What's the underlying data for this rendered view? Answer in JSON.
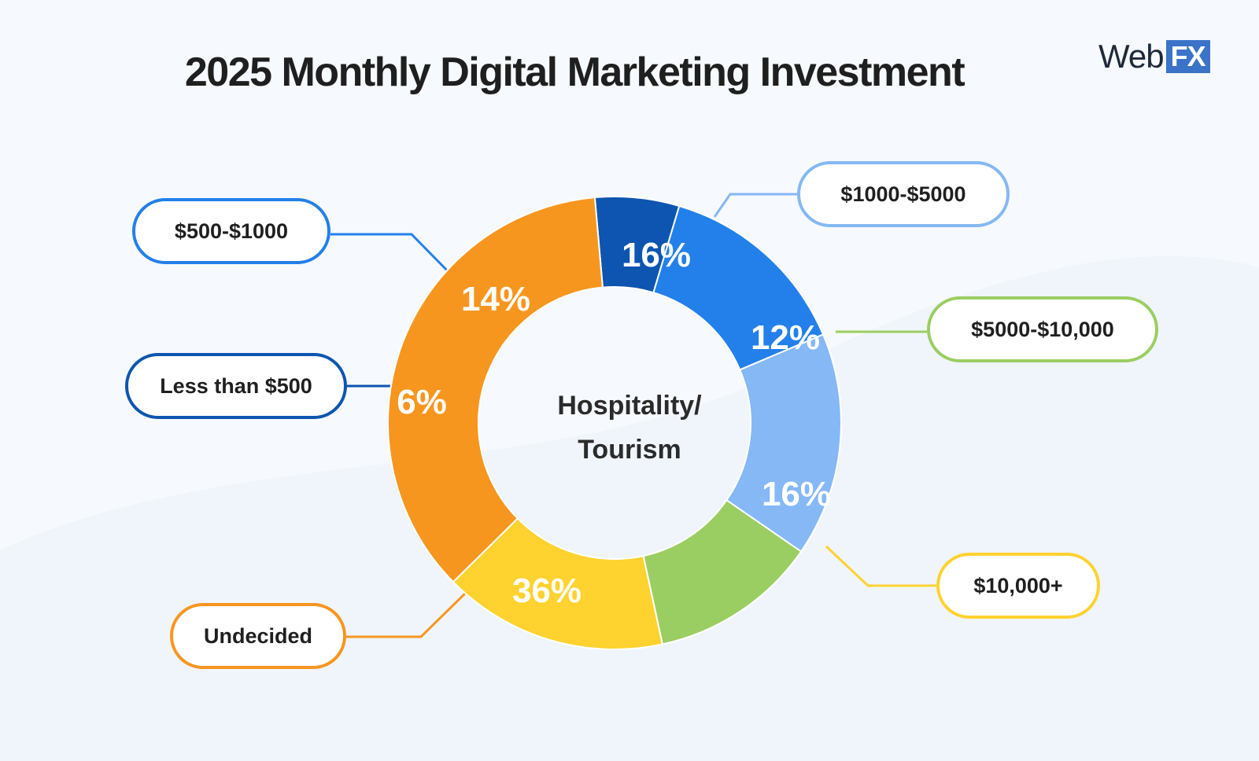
{
  "header": {
    "title": "2025 Monthly Digital Marketing Investment",
    "logo_web": "Web",
    "logo_fx": "FX"
  },
  "center": {
    "line1": "Hospitality/",
    "line2": "Tourism"
  },
  "colors": {
    "background": "#f6f9fd",
    "dark_blue": "#0d55b0",
    "blue": "#2380ea",
    "light_blue": "#85b8f5",
    "green": "#9bce62",
    "yellow": "#fed22f",
    "orange": "#f7961f"
  },
  "chart_data": {
    "type": "pie",
    "title": "2025 Monthly Digital Marketing Investment",
    "center_text": "Hospitality/ Tourism",
    "slices": [
      {
        "category": "Less than $500",
        "value": 6,
        "label": "6%",
        "color": "#0d55b0"
      },
      {
        "category": "$500-$1000",
        "value": 14,
        "label": "14%",
        "color": "#2380ea"
      },
      {
        "category": "$1000-$5000",
        "value": 16,
        "label": "16%",
        "color": "#85b8f5"
      },
      {
        "category": "$5000-$10,000",
        "value": 12,
        "label": "12%",
        "color": "#9bce62"
      },
      {
        "category": "$10,000+",
        "value": 16,
        "label": "16%",
        "color": "#fed22f"
      },
      {
        "category": "Undecided",
        "value": 36,
        "label": "36%",
        "color": "#f7961f"
      }
    ]
  }
}
